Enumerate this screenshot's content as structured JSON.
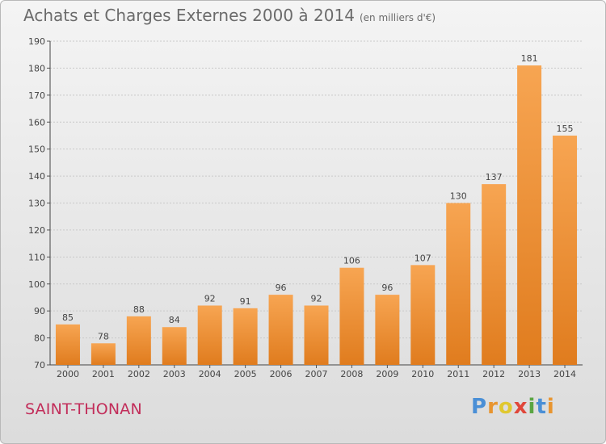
{
  "title": "Achats et Charges Externes 2000 à 2014",
  "unit": "(en milliers d'€)",
  "commune": "SAINT-THONAN",
  "brand": {
    "letters": [
      "P",
      "r",
      "o",
      "x",
      "i",
      "t",
      "i"
    ],
    "colors": [
      "#4a8fd6",
      "#e89530",
      "#e0c830",
      "#e0473a",
      "#5aa543",
      "#4a8fd6",
      "#e89530"
    ]
  },
  "colors": {
    "bar_top": "#f7a552",
    "bar_bottom": "#e07c1e",
    "commune": "#c22d5a"
  },
  "chart_data": {
    "type": "bar",
    "title": "Achats et Charges Externes 2000 à 2014",
    "categories": [
      "2000",
      "2001",
      "2002",
      "2003",
      "2004",
      "2005",
      "2006",
      "2007",
      "2008",
      "2009",
      "2010",
      "2011",
      "2012",
      "2013",
      "2014"
    ],
    "values": [
      85,
      78,
      88,
      84,
      92,
      91,
      96,
      92,
      106,
      96,
      107,
      130,
      137,
      181,
      155
    ],
    "ylim": [
      70,
      190
    ],
    "yticks": [
      70,
      80,
      90,
      100,
      110,
      120,
      130,
      140,
      150,
      160,
      170,
      180,
      190
    ],
    "grid": true,
    "data_labels": true
  }
}
